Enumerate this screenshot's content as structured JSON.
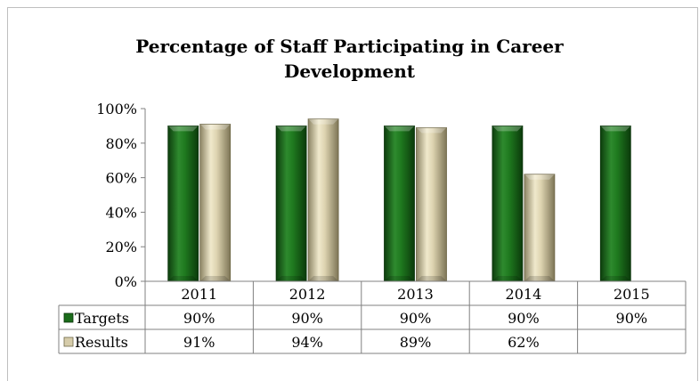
{
  "chart_data": {
    "type": "bar",
    "title": "Percentage of Staff Participating in Career Development",
    "title_lines": [
      "Percentage of Staff Participating in Career",
      "Development"
    ],
    "categories": [
      "2011",
      "2012",
      "2013",
      "2014",
      "2015"
    ],
    "series": [
      {
        "name": "Targets",
        "values": [
          90,
          90,
          90,
          90,
          90
        ],
        "labels": [
          "90%",
          "90%",
          "90%",
          "90%",
          "90%"
        ],
        "color": "#1a6b1a"
      },
      {
        "name": "Results",
        "values": [
          91,
          94,
          89,
          62,
          null
        ],
        "labels": [
          "91%",
          "94%",
          "89%",
          "62%",
          ""
        ],
        "color": "#d6ccaa"
      }
    ],
    "ylim": [
      0,
      100
    ],
    "yticks": [
      "0%",
      "20%",
      "40%",
      "60%",
      "80%",
      "100%"
    ],
    "grid": false,
    "legend": "data-table",
    "xlabel": "",
    "ylabel": ""
  }
}
